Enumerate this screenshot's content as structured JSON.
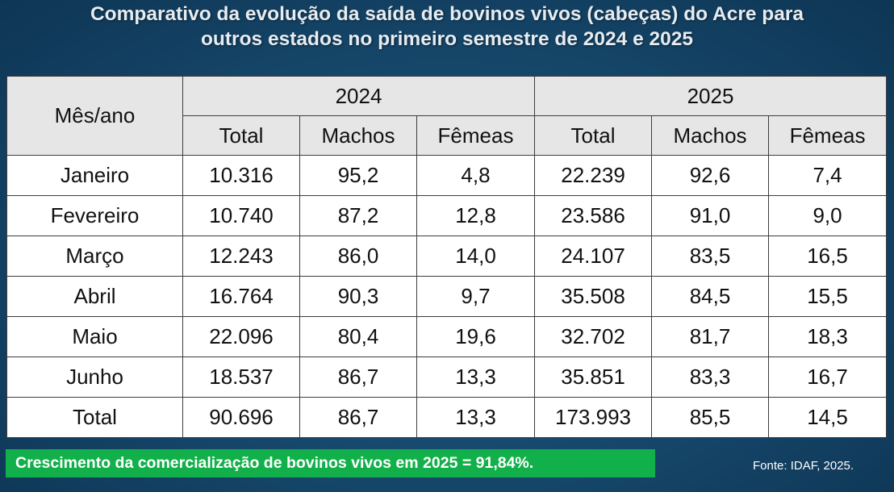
{
  "title": {
    "line1": "Comparativo da evolução da saída de bovinos vivos (cabeças) do Acre para",
    "line2": "outros estados no primeiro semestre de 2024 e 2025"
  },
  "table": {
    "corner_label": "Mês/ano",
    "years": [
      "2024",
      "2025"
    ],
    "subheaders": [
      "Total",
      "Machos",
      "Fêmeas",
      "Total",
      "Machos",
      "Fêmeas"
    ],
    "rows": [
      {
        "month": "Janeiro",
        "cells": [
          "10.316",
          "95,2",
          "4,8",
          "22.239",
          "92,6",
          "7,4"
        ]
      },
      {
        "month": "Fevereiro",
        "cells": [
          "10.740",
          "87,2",
          "12,8",
          "23.586",
          "91,0",
          "9,0"
        ]
      },
      {
        "month": "Março",
        "cells": [
          "12.243",
          "86,0",
          "14,0",
          "24.107",
          "83,5",
          "16,5"
        ]
      },
      {
        "month": "Abril",
        "cells": [
          "16.764",
          "90,3",
          "9,7",
          "35.508",
          "84,5",
          "15,5"
        ]
      },
      {
        "month": "Maio",
        "cells": [
          "22.096",
          "80,4",
          "19,6",
          "32.702",
          "81,7",
          "18,3"
        ]
      },
      {
        "month": "Junho",
        "cells": [
          "18.537",
          "86,7",
          "13,3",
          "35.851",
          "83,3",
          "16,7"
        ]
      },
      {
        "month": "Total",
        "cells": [
          "90.696",
          "86,7",
          "13,3",
          "173.993",
          "85,5",
          "14,5"
        ]
      }
    ]
  },
  "growth_banner": "Crescimento da comercialização de bovinos vivos em 2025 = 91,84%.",
  "source": "Fonte: IDAF, 2025.",
  "colors": {
    "background": "#174a6e",
    "header_fill": "#e6e6e6",
    "banner": "#12b04a"
  }
}
